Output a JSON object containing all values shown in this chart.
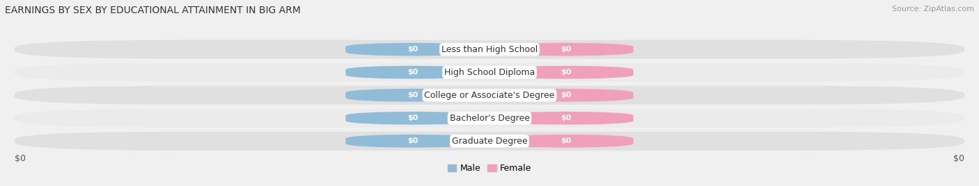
{
  "title": "EARNINGS BY SEX BY EDUCATIONAL ATTAINMENT IN BIG ARM",
  "source": "Source: ZipAtlas.com",
  "categories": [
    "Less than High School",
    "High School Diploma",
    "College or Associate's Degree",
    "Bachelor's Degree",
    "Graduate Degree"
  ],
  "male_values": [
    0,
    0,
    0,
    0,
    0
  ],
  "female_values": [
    0,
    0,
    0,
    0,
    0
  ],
  "male_color": "#90bcd8",
  "female_color": "#f0a0b8",
  "male_label": "Male",
  "female_label": "Female",
  "background_color": "#f0f0f0",
  "row_colors": [
    "#e0e0e0",
    "#ebebeb",
    "#e0e0e0",
    "#ebebeb",
    "#e0e0e0"
  ],
  "title_color": "#333333",
  "source_color": "#999999",
  "xlabel_left": "$0",
  "xlabel_right": "$0",
  "title_fontsize": 10,
  "source_fontsize": 8,
  "label_fontsize": 8,
  "category_fontsize": 9,
  "axis_fontsize": 9,
  "legend_fontsize": 9
}
